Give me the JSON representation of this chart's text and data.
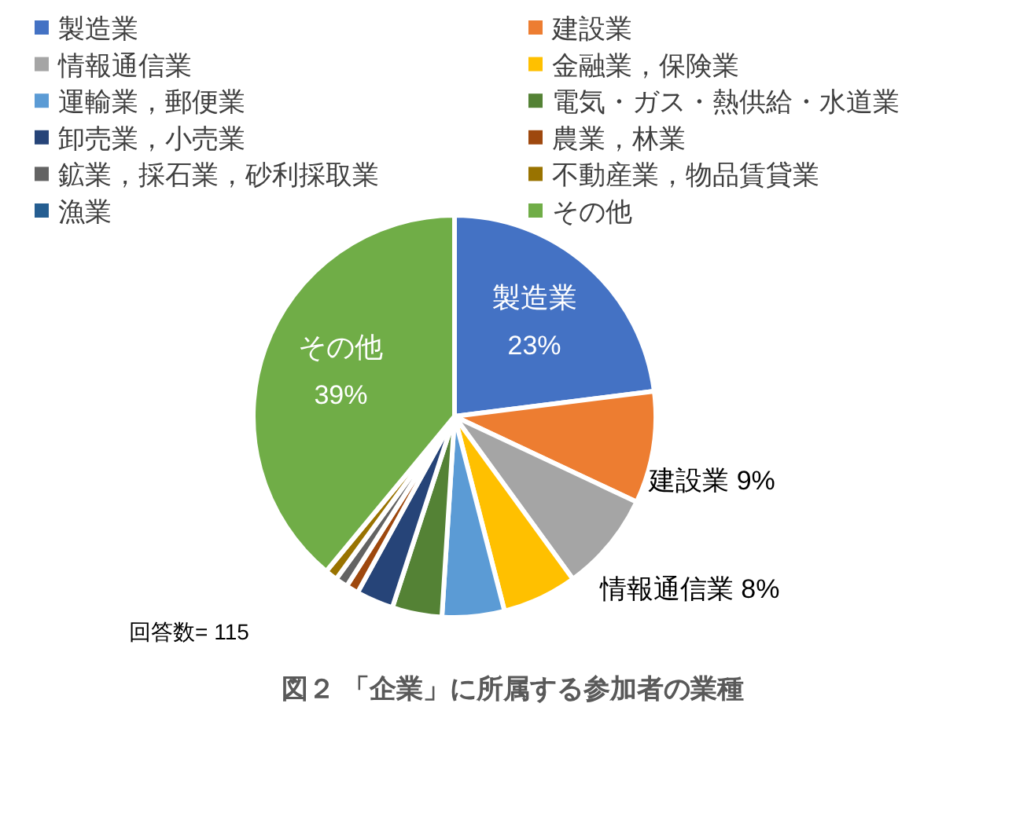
{
  "chart_data": {
    "type": "pie",
    "title": "図２ 「企業」に所属する参加者の業種",
    "categories": [
      "製造業",
      "建設業",
      "情報通信業",
      "金融業，保険業",
      "運輸業，郵便業",
      "電気・ガス・熱供給・水道業",
      "卸売業，小売業",
      "農業，林業",
      "鉱業，採石業，砂利採取業",
      "不動産業，物品賃貸業",
      "漁業",
      "その他"
    ],
    "values": [
      23,
      9,
      8,
      6,
      5,
      4,
      3,
      1,
      1,
      1,
      0,
      39
    ],
    "colors": [
      "#4472c4",
      "#ed7d31",
      "#a5a5a5",
      "#ffc000",
      "#5b9bd5",
      "#548235",
      "#264478",
      "#9e480e",
      "#636363",
      "#997300",
      "#255e91",
      "#70ad47"
    ],
    "value_labels": [
      "23%",
      "9%",
      "8%",
      null,
      null,
      null,
      null,
      null,
      null,
      null,
      null,
      "39%"
    ],
    "legend": "top",
    "annotations": [
      "回答数= 115"
    ]
  }
}
